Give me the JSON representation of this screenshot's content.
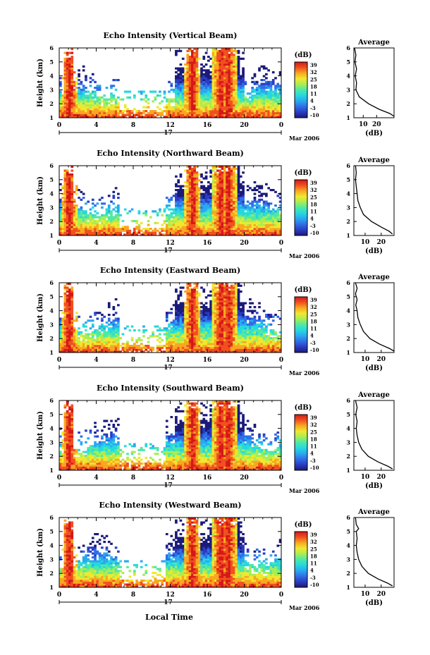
{
  "figure": {
    "x_axis_title": "Local Time",
    "date_label": "Mar 2006",
    "day_label": "17",
    "colorbar_unit": "(dB)",
    "colorbar_ticks": [
      "39",
      "32",
      "25",
      "18",
      "11",
      "4",
      "-3",
      "-10"
    ],
    "colormap": [
      "#1a1a7a",
      "#2b3cc2",
      "#2f6ee6",
      "#2aa8f0",
      "#25d8e0",
      "#4ee8a8",
      "#a8ee52",
      "#f0e830",
      "#f8a820",
      "#f05020",
      "#d41818"
    ]
  },
  "chart_data": [
    {
      "type": "heatmap",
      "title": "Echo Intensity (Vertical Beam)",
      "ylabel": "Height (km)",
      "xlabel": "",
      "x_ticks": [
        "0",
        "4",
        "8",
        "12",
        "16",
        "20",
        "0"
      ],
      "x_range": [
        0,
        24
      ],
      "y_ticks": [
        "1",
        "2",
        "3",
        "4",
        "5",
        "6"
      ],
      "y_range": [
        1,
        6
      ],
      "colorbar_range_dB": [
        -10,
        39
      ],
      "profile": {
        "title": "Average",
        "xlabel": "(dB)",
        "x_ticks": [
          "10",
          "20"
        ],
        "x_range": [
          3,
          33
        ],
        "y_range": [
          1,
          6
        ],
        "points": [
          [
            3.5,
            6.0
          ],
          [
            4.5,
            5.5
          ],
          [
            3.8,
            5.0
          ],
          [
            5.0,
            4.5
          ],
          [
            4.0,
            4.0
          ],
          [
            5.0,
            3.5
          ],
          [
            4.5,
            3.0
          ],
          [
            7.0,
            2.5
          ],
          [
            14.0,
            2.0
          ],
          [
            22.0,
            1.6
          ],
          [
            30.0,
            1.3
          ],
          [
            33.0,
            1.1
          ]
        ]
      }
    },
    {
      "type": "heatmap",
      "title": "Echo Intensity (Northward Beam)",
      "ylabel": "Height (km)",
      "xlabel": "",
      "x_ticks": [
        "0",
        "4",
        "8",
        "12",
        "16",
        "20",
        "0"
      ],
      "x_range": [
        0,
        24
      ],
      "y_ticks": [
        "1",
        "2",
        "3",
        "4",
        "5",
        "6"
      ],
      "y_range": [
        1,
        6
      ],
      "colorbar_range_dB": [
        -10,
        39
      ],
      "profile": {
        "title": "Average",
        "xlabel": "(dB)",
        "x_ticks": [
          "10",
          "20"
        ],
        "x_range": [
          3,
          28
        ],
        "y_range": [
          1,
          6
        ],
        "points": [
          [
            4.0,
            6.0
          ],
          [
            4.5,
            5.5
          ],
          [
            4.0,
            5.0
          ],
          [
            4.5,
            4.5
          ],
          [
            5.0,
            4.0
          ],
          [
            5.5,
            3.5
          ],
          [
            7.0,
            3.0
          ],
          [
            9.0,
            2.5
          ],
          [
            14.0,
            2.0
          ],
          [
            20.0,
            1.6
          ],
          [
            25.0,
            1.3
          ],
          [
            27.0,
            1.1
          ]
        ]
      }
    },
    {
      "type": "heatmap",
      "title": "Echo Intensity (Eastward Beam)",
      "ylabel": "Height (km)",
      "xlabel": "",
      "x_ticks": [
        "0",
        "4",
        "8",
        "12",
        "16",
        "20",
        "0"
      ],
      "x_range": [
        0,
        24
      ],
      "y_ticks": [
        "1",
        "2",
        "3",
        "4",
        "5",
        "6"
      ],
      "y_range": [
        1,
        6
      ],
      "colorbar_range_dB": [
        -10,
        39
      ],
      "profile": {
        "title": "Average",
        "xlabel": "(dB)",
        "x_ticks": [
          "10",
          "20"
        ],
        "x_range": [
          3,
          28
        ],
        "y_range": [
          1,
          6
        ],
        "points": [
          [
            4.0,
            6.0
          ],
          [
            5.0,
            5.6
          ],
          [
            4.0,
            5.2
          ],
          [
            5.0,
            4.8
          ],
          [
            4.2,
            4.4
          ],
          [
            5.0,
            4.0
          ],
          [
            5.5,
            3.5
          ],
          [
            7.0,
            3.0
          ],
          [
            9.0,
            2.5
          ],
          [
            13.0,
            2.0
          ],
          [
            19.0,
            1.6
          ],
          [
            25.0,
            1.3
          ],
          [
            28.0,
            1.1
          ]
        ]
      }
    },
    {
      "type": "heatmap",
      "title": "Echo Intensity (Southward Beam)",
      "ylabel": "Height (km)",
      "xlabel": "",
      "x_ticks": [
        "0",
        "4",
        "8",
        "12",
        "16",
        "20",
        "0"
      ],
      "x_range": [
        0,
        24
      ],
      "y_ticks": [
        "1",
        "2",
        "3",
        "4",
        "5",
        "6"
      ],
      "y_range": [
        1,
        6
      ],
      "colorbar_range_dB": [
        -10,
        39
      ],
      "profile": {
        "title": "Average",
        "xlabel": "(dB)",
        "x_ticks": [
          "10",
          "20"
        ],
        "x_range": [
          3,
          28
        ],
        "y_range": [
          1,
          6
        ],
        "points": [
          [
            4.0,
            6.0
          ],
          [
            5.0,
            5.5
          ],
          [
            4.2,
            5.0
          ],
          [
            5.0,
            4.5
          ],
          [
            4.5,
            4.0
          ],
          [
            5.0,
            3.5
          ],
          [
            6.0,
            3.0
          ],
          [
            8.0,
            2.5
          ],
          [
            12.0,
            2.0
          ],
          [
            18.0,
            1.6
          ],
          [
            24.0,
            1.3
          ],
          [
            27.0,
            1.1
          ]
        ]
      }
    },
    {
      "type": "heatmap",
      "title": "Echo Intensity (Westward Beam)",
      "ylabel": "Height (km)",
      "xlabel": "Local Time",
      "x_ticks": [
        "0",
        "4",
        "8",
        "12",
        "16",
        "20",
        "0"
      ],
      "x_range": [
        0,
        24
      ],
      "y_ticks": [
        "1",
        "2",
        "3",
        "4",
        "5",
        "6"
      ],
      "y_range": [
        1,
        6
      ],
      "colorbar_range_dB": [
        -10,
        39
      ],
      "profile": {
        "title": "Average",
        "xlabel": "(dB)",
        "x_ticks": [
          "10",
          "20"
        ],
        "x_range": [
          3,
          28
        ],
        "y_range": [
          1,
          6
        ],
        "points": [
          [
            4.0,
            6.0
          ],
          [
            4.5,
            5.5
          ],
          [
            6.0,
            5.2
          ],
          [
            4.5,
            5.0
          ],
          [
            5.0,
            4.5
          ],
          [
            4.5,
            4.0
          ],
          [
            5.0,
            3.5
          ],
          [
            6.0,
            3.0
          ],
          [
            8.0,
            2.5
          ],
          [
            12.0,
            2.0
          ],
          [
            18.0,
            1.6
          ],
          [
            24.0,
            1.3
          ],
          [
            27.0,
            1.1
          ]
        ]
      }
    }
  ]
}
